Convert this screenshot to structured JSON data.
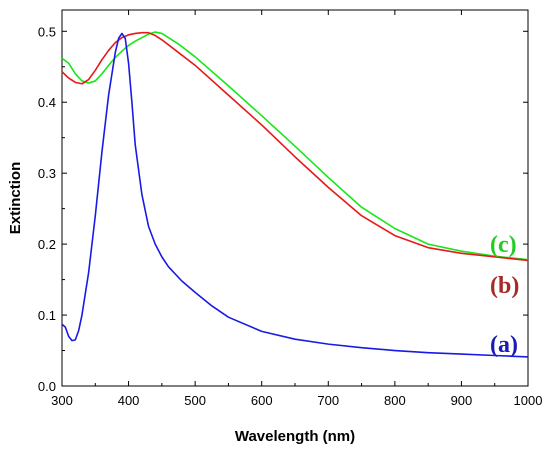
{
  "chart_data": {
    "type": "line",
    "title": "",
    "xlabel": "Wavelength (nm)",
    "ylabel": "Extinction",
    "xlim": [
      300,
      1000
    ],
    "ylim": [
      0,
      0.53
    ],
    "xticks": [
      300,
      400,
      500,
      600,
      700,
      800,
      900,
      1000
    ],
    "yticks": [
      0.0,
      0.1,
      0.2,
      0.3,
      0.4,
      0.5
    ],
    "grid": false,
    "legend": "none",
    "series": [
      {
        "name": "(a)",
        "color": "#1a1ae6",
        "x": [
          300,
          305,
          310,
          315,
          320,
          325,
          330,
          340,
          350,
          360,
          370,
          380,
          385,
          390,
          395,
          400,
          405,
          410,
          420,
          430,
          440,
          450,
          460,
          480,
          500,
          525,
          550,
          600,
          650,
          700,
          750,
          800,
          850,
          900,
          950,
          1000
        ],
        "y": [
          0.087,
          0.083,
          0.07,
          0.064,
          0.065,
          0.078,
          0.1,
          0.16,
          0.24,
          0.33,
          0.41,
          0.47,
          0.49,
          0.497,
          0.49,
          0.455,
          0.4,
          0.34,
          0.27,
          0.225,
          0.2,
          0.182,
          0.168,
          0.148,
          0.132,
          0.113,
          0.097,
          0.077,
          0.066,
          0.059,
          0.054,
          0.05,
          0.047,
          0.045,
          0.043,
          0.041
        ]
      },
      {
        "name": "(b)",
        "color": "#e61a1a",
        "x": [
          300,
          310,
          320,
          330,
          340,
          350,
          360,
          370,
          380,
          390,
          400,
          410,
          420,
          430,
          440,
          450,
          475,
          500,
          550,
          600,
          650,
          700,
          750,
          800,
          850,
          900,
          950,
          1000
        ],
        "y": [
          0.443,
          0.434,
          0.428,
          0.426,
          0.432,
          0.445,
          0.46,
          0.473,
          0.484,
          0.491,
          0.495,
          0.497,
          0.498,
          0.498,
          0.494,
          0.488,
          0.47,
          0.452,
          0.41,
          0.368,
          0.323,
          0.28,
          0.24,
          0.212,
          0.195,
          0.187,
          0.182,
          0.177
        ]
      },
      {
        "name": "(c)",
        "color": "#1ae61a",
        "x": [
          300,
          310,
          320,
          330,
          340,
          350,
          360,
          370,
          380,
          390,
          400,
          410,
          420,
          430,
          440,
          450,
          475,
          500,
          550,
          600,
          650,
          700,
          750,
          800,
          850,
          900,
          950,
          1000
        ],
        "y": [
          0.462,
          0.455,
          0.44,
          0.43,
          0.427,
          0.43,
          0.44,
          0.452,
          0.463,
          0.472,
          0.48,
          0.486,
          0.491,
          0.496,
          0.499,
          0.497,
          0.482,
          0.464,
          0.423,
          0.381,
          0.338,
          0.294,
          0.252,
          0.222,
          0.2,
          0.19,
          0.183,
          0.178
        ]
      }
    ],
    "annotations": [
      {
        "text": "(c)",
        "color": "#22cc22"
      },
      {
        "text": "(b)",
        "color": "#a52a2a"
      },
      {
        "text": "(a)",
        "color": "#1a1ab4"
      }
    ]
  }
}
